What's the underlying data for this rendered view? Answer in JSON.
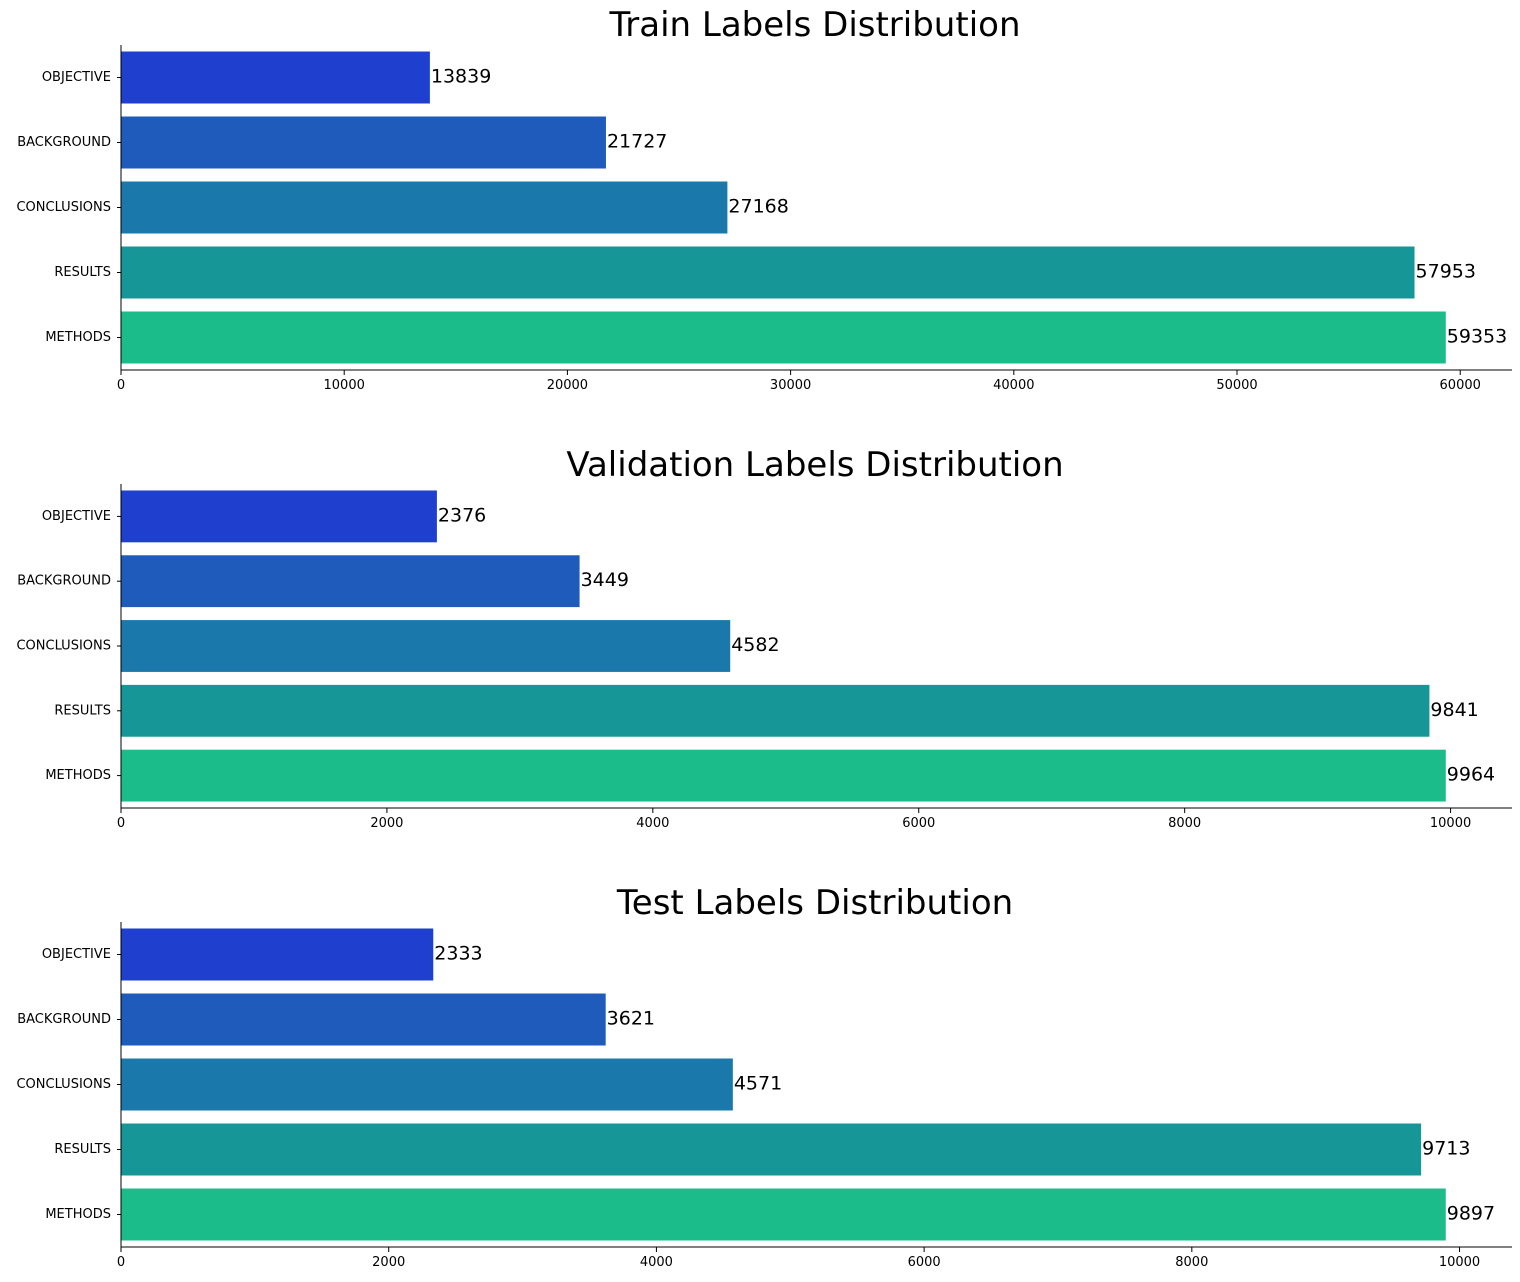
{
  "chart_data": [
    {
      "type": "bar",
      "orientation": "horizontal",
      "title": "Train Labels Distribution",
      "categories": [
        "OBJECTIVE",
        "BACKGROUND",
        "CONCLUSIONS",
        "RESULTS",
        "METHODS"
      ],
      "values": [
        13839,
        21727,
        27168,
        57953,
        59353
      ],
      "value_labels": [
        "13839",
        "21727",
        "27168",
        "57953",
        "59353"
      ],
      "xlim": [
        0,
        62320
      ],
      "xticks": [
        0,
        10000,
        20000,
        30000,
        40000,
        50000,
        60000
      ],
      "xtick_labels": [
        "0",
        "10000",
        "20000",
        "30000",
        "40000",
        "50000",
        "60000"
      ],
      "xlabel": "",
      "ylabel": "",
      "grid": false,
      "colors": [
        "#1f3fcf",
        "#1e5bbb",
        "#1b78aa",
        "#169696",
        "#1cbb8a"
      ]
    },
    {
      "type": "bar",
      "orientation": "horizontal",
      "title": "Validation Labels Distribution",
      "categories": [
        "OBJECTIVE",
        "BACKGROUND",
        "CONCLUSIONS",
        "RESULTS",
        "METHODS"
      ],
      "values": [
        2376,
        3449,
        4582,
        9841,
        9964
      ],
      "value_labels": [
        "2376",
        "3449",
        "4582",
        "9841",
        "9964"
      ],
      "xlim": [
        0,
        10462
      ],
      "xticks": [
        0,
        2000,
        4000,
        6000,
        8000,
        10000
      ],
      "xtick_labels": [
        "0",
        "2000",
        "4000",
        "6000",
        "8000",
        "10000"
      ],
      "xlabel": "",
      "ylabel": "",
      "grid": false,
      "colors": [
        "#1f3fcf",
        "#1e5bbb",
        "#1b78aa",
        "#169696",
        "#1cbb8a"
      ]
    },
    {
      "type": "bar",
      "orientation": "horizontal",
      "title": "Test Labels Distribution",
      "categories": [
        "OBJECTIVE",
        "BACKGROUND",
        "CONCLUSIONS",
        "RESULTS",
        "METHODS"
      ],
      "values": [
        2333,
        3621,
        4571,
        9713,
        9897
      ],
      "value_labels": [
        "2333",
        "3621",
        "4571",
        "9713",
        "9897"
      ],
      "xlim": [
        0,
        10392
      ],
      "xticks": [
        0,
        2000,
        4000,
        6000,
        8000,
        10000
      ],
      "xtick_labels": [
        "0",
        "2000",
        "4000",
        "6000",
        "8000",
        "10000"
      ],
      "xlabel": "",
      "ylabel": "",
      "grid": false,
      "colors": [
        "#1f3fcf",
        "#1e5bbb",
        "#1b78aa",
        "#169696",
        "#1cbb8a"
      ]
    }
  ]
}
